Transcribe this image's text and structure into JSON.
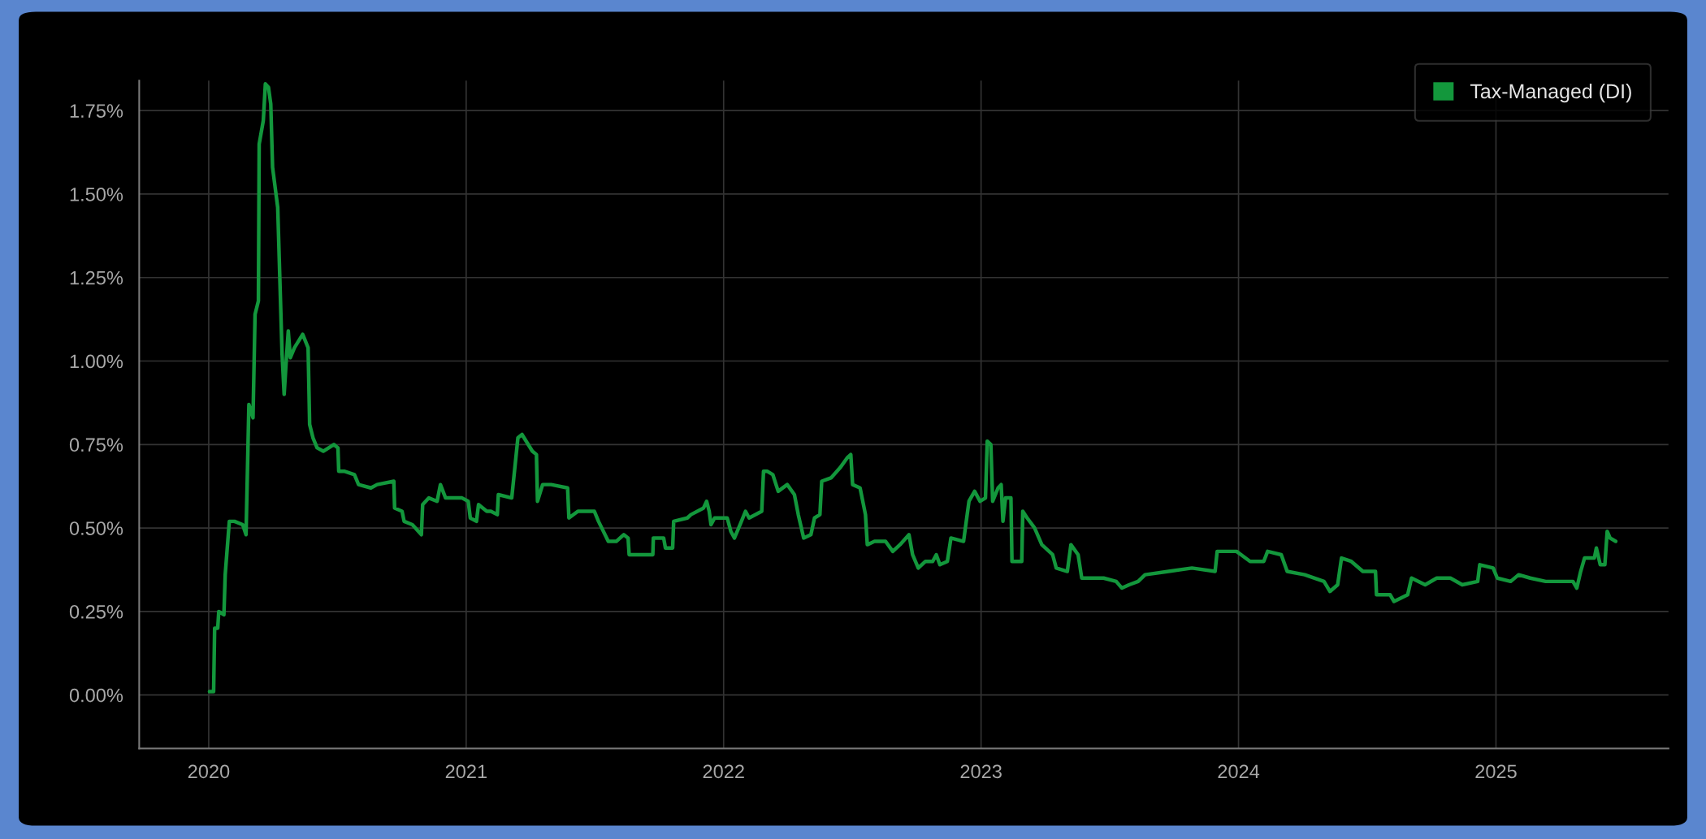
{
  "chart_data": {
    "type": "line",
    "legend": "top right",
    "grid": true,
    "marker": "none",
    "line_style": "solid",
    "xlim": [
      2019.73,
      2025.67
    ],
    "xticks": [
      2020,
      2021,
      2022,
      2023,
      2024,
      2025
    ],
    "ylim": [
      -0.16,
      1.84
    ],
    "yticks": [
      {
        "value": 0,
        "label": "0.00%"
      },
      {
        "value": 0.25,
        "label": "0.25%"
      },
      {
        "value": 0.5,
        "label": "0.50%"
      },
      {
        "value": 0.75,
        "label": "0.75%"
      },
      {
        "value": 1,
        "label": "1.00%"
      },
      {
        "value": 1.25,
        "label": "1.25%"
      },
      {
        "value": 1.5,
        "label": "1.50%"
      },
      {
        "value": 1.75,
        "label": "1.75%"
      }
    ],
    "x": [
      2020.003,
      2020.019,
      2020.023,
      2020.035,
      2020.039,
      2020.059,
      2020.064,
      2020.08,
      2020.1,
      2020.132,
      2020.145,
      2020.156,
      2020.172,
      2020.18,
      2020.193,
      2020.196,
      2020.212,
      2020.22,
      2020.232,
      2020.241,
      2020.248,
      2020.268,
      2020.285,
      2020.293,
      2020.301,
      2020.309,
      2020.317,
      2020.333,
      2020.365,
      2020.386,
      2020.392,
      2020.405,
      2020.421,
      2020.445,
      2020.486,
      2020.502,
      2020.505,
      2020.526,
      2020.566,
      2020.582,
      2020.63,
      2020.654,
      2020.719,
      2020.722,
      2020.751,
      2020.759,
      2020.791,
      2020.826,
      2020.831,
      2020.855,
      2020.887,
      2020.9,
      2020.92,
      2020.984,
      2021.008,
      2021.016,
      2021.04,
      2021.048,
      2021.08,
      2021.096,
      2021.121,
      2021.125,
      2021.177,
      2021.201,
      2021.217,
      2021.257,
      2021.273,
      2021.277,
      2021.297,
      2021.33,
      2021.394,
      2021.399,
      2021.434,
      2021.498,
      2021.514,
      2021.552,
      2021.583,
      2021.612,
      2021.629,
      2021.633,
      2021.725,
      2021.727,
      2021.767,
      2021.774,
      2021.802,
      2021.806,
      2021.859,
      2021.873,
      2021.922,
      2021.934,
      2021.944,
      2021.951,
      2021.965,
      2022.014,
      2022.028,
      2022.042,
      2022.064,
      2022.085,
      2022.099,
      2022.148,
      2022.155,
      2022.169,
      2022.191,
      2022.212,
      2022.247,
      2022.275,
      2022.29,
      2022.311,
      2022.339,
      2022.353,
      2022.374,
      2022.381,
      2022.417,
      2022.452,
      2022.48,
      2022.494,
      2022.501,
      2022.53,
      2022.551,
      2022.558,
      2022.586,
      2022.629,
      2022.657,
      2022.685,
      2022.72,
      2022.734,
      2022.756,
      2022.784,
      2022.812,
      2022.826,
      2022.84,
      2022.869,
      2022.883,
      2022.932,
      2022.953,
      2022.975,
      2022.996,
      2023.017,
      2023.024,
      2023.038,
      2023.045,
      2023.066,
      2023.078,
      2023.085,
      2023.095,
      2023.116,
      2023.12,
      2023.158,
      2023.162,
      2023.179,
      2023.208,
      2023.236,
      2023.278,
      2023.292,
      2023.335,
      2023.349,
      2023.377,
      2023.391,
      2023.476,
      2023.525,
      2023.547,
      2023.575,
      2023.61,
      2023.637,
      2023.728,
      2023.819,
      2023.909,
      2023.917,
      2023.992,
      2024.045,
      2024.098,
      2024.113,
      2024.166,
      2024.189,
      2024.257,
      2024.332,
      2024.355,
      2024.385,
      2024.4,
      2024.438,
      2024.483,
      2024.532,
      2024.536,
      2024.589,
      2024.604,
      2024.657,
      2024.672,
      2024.725,
      2024.77,
      2024.823,
      2024.869,
      2024.929,
      2024.937,
      2024.989,
      2025.005,
      2025.057,
      2025.088,
      2025.133,
      2025.193,
      2025.299,
      2025.314,
      2025.329,
      2025.344,
      2025.382,
      2025.39,
      2025.405,
      2025.423,
      2025.432,
      2025.443,
      2025.465
    ],
    "series": [
      {
        "name": "Tax-Managed (DI)",
        "color": "#13973c",
        "values": [
          0.01,
          0.01,
          0.2,
          0.2,
          0.25,
          0.24,
          0.36,
          0.52,
          0.52,
          0.51,
          0.48,
          0.87,
          0.83,
          1.14,
          1.18,
          1.65,
          1.72,
          1.83,
          1.82,
          1.77,
          1.58,
          1.46,
          1.02,
          0.9,
          1.0,
          1.09,
          1.01,
          1.04,
          1.08,
          1.04,
          0.81,
          0.77,
          0.74,
          0.73,
          0.75,
          0.74,
          0.67,
          0.67,
          0.66,
          0.63,
          0.62,
          0.63,
          0.64,
          0.56,
          0.55,
          0.52,
          0.51,
          0.48,
          0.57,
          0.59,
          0.58,
          0.63,
          0.59,
          0.59,
          0.58,
          0.53,
          0.52,
          0.57,
          0.55,
          0.55,
          0.54,
          0.6,
          0.59,
          0.77,
          0.78,
          0.73,
          0.72,
          0.58,
          0.63,
          0.63,
          0.62,
          0.53,
          0.55,
          0.55,
          0.52,
          0.46,
          0.46,
          0.48,
          0.47,
          0.42,
          0.42,
          0.47,
          0.47,
          0.44,
          0.44,
          0.52,
          0.53,
          0.54,
          0.56,
          0.58,
          0.55,
          0.51,
          0.53,
          0.53,
          0.49,
          0.47,
          0.51,
          0.55,
          0.53,
          0.55,
          0.67,
          0.67,
          0.66,
          0.61,
          0.63,
          0.6,
          0.54,
          0.47,
          0.48,
          0.53,
          0.54,
          0.64,
          0.65,
          0.68,
          0.71,
          0.72,
          0.63,
          0.62,
          0.54,
          0.45,
          0.46,
          0.46,
          0.43,
          0.45,
          0.48,
          0.42,
          0.38,
          0.4,
          0.4,
          0.42,
          0.39,
          0.4,
          0.47,
          0.46,
          0.58,
          0.61,
          0.58,
          0.59,
          0.76,
          0.75,
          0.58,
          0.62,
          0.63,
          0.52,
          0.59,
          0.59,
          0.4,
          0.4,
          0.55,
          0.53,
          0.5,
          0.45,
          0.42,
          0.38,
          0.37,
          0.45,
          0.42,
          0.35,
          0.35,
          0.34,
          0.32,
          0.33,
          0.34,
          0.36,
          0.37,
          0.38,
          0.37,
          0.43,
          0.43,
          0.4,
          0.4,
          0.43,
          0.42,
          0.37,
          0.36,
          0.34,
          0.31,
          0.33,
          0.41,
          0.4,
          0.37,
          0.37,
          0.3,
          0.3,
          0.28,
          0.3,
          0.35,
          0.33,
          0.35,
          0.35,
          0.33,
          0.34,
          0.39,
          0.38,
          0.35,
          0.34,
          0.36,
          0.35,
          0.34,
          0.34,
          0.32,
          0.37,
          0.41,
          0.41,
          0.44,
          0.39,
          0.39,
          0.49,
          0.47,
          0.46
        ]
      }
    ]
  }
}
